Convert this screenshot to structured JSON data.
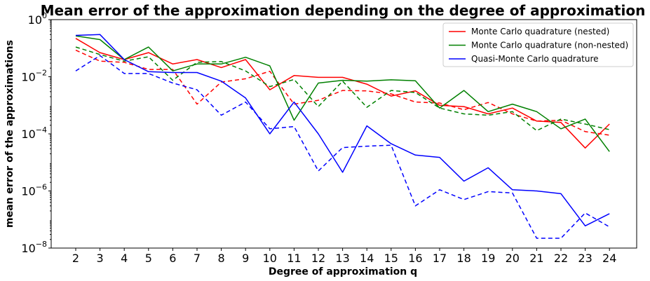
{
  "chart_data": {
    "type": "line",
    "title": "Mean error of the approximation depending on the degree of approximation",
    "xlabel": "Degree of approximation q",
    "ylabel": "mean error of the approximations",
    "yscale": "log",
    "ylim": [
      1e-08,
      1
    ],
    "y_ticks": [
      {
        "base": "10",
        "exp": "−8",
        "value": 1e-08
      },
      {
        "base": "10",
        "exp": "−6",
        "value": 1e-06
      },
      {
        "base": "10",
        "exp": "−4",
        "value": 0.0001
      },
      {
        "base": "10",
        "exp": "−2",
        "value": 0.01
      },
      {
        "base": "10",
        "exp": "0",
        "value": 1
      }
    ],
    "x": [
      2,
      3,
      4,
      5,
      6,
      7,
      8,
      9,
      10,
      11,
      12,
      13,
      14,
      15,
      16,
      17,
      18,
      19,
      20,
      21,
      22,
      23,
      24
    ],
    "x_tick_labels": [
      "2",
      "3",
      "4",
      "5",
      "6",
      "7",
      "8",
      "9",
      "10",
      "11",
      "12",
      "13",
      "14",
      "15",
      "16",
      "17",
      "18",
      "19",
      "20",
      "21",
      "22",
      "23",
      "24"
    ],
    "legend_position": "top-right",
    "grid": false,
    "series": [
      {
        "name": "Monte Carlo quadrature (nested)",
        "color": "#ff0000",
        "style": "solid",
        "values": [
          0.22,
          0.07,
          0.04,
          0.07,
          0.028,
          0.04,
          0.021,
          0.04,
          0.0035,
          0.011,
          0.0095,
          0.0095,
          0.0055,
          0.0021,
          0.0032,
          0.001,
          0.0009,
          0.0005,
          0.0008,
          0.00028,
          0.00025,
          3.2e-05,
          0.00022
        ]
      },
      {
        "name": "",
        "color": "#ff0000",
        "style": "dashed",
        "values": [
          0.085,
          0.035,
          0.032,
          0.018,
          0.018,
          0.0011,
          0.0065,
          0.0085,
          0.0155,
          0.0011,
          0.0015,
          0.0033,
          0.0032,
          0.0025,
          0.0013,
          0.0012,
          0.0007,
          0.00125,
          0.0005,
          0.00028,
          0.0003,
          0.00012,
          9e-05
        ]
      },
      {
        "name": "Monte Carlo quadrature (non-nested)",
        "color": "#008000",
        "style": "solid",
        "values": [
          0.27,
          0.2,
          0.04,
          0.11,
          0.016,
          0.028,
          0.028,
          0.048,
          0.024,
          0.0003,
          0.006,
          0.0075,
          0.007,
          0.0078,
          0.0072,
          0.0008,
          0.0033,
          0.0006,
          0.0011,
          0.0006,
          0.00015,
          0.00033,
          2.4e-05
        ]
      },
      {
        "name": "",
        "color": "#008000",
        "style": "dashed",
        "values": [
          0.11,
          0.06,
          0.035,
          0.05,
          0.0075,
          0.032,
          0.034,
          0.016,
          0.0045,
          0.008,
          0.0009,
          0.007,
          0.00085,
          0.0033,
          0.0028,
          0.0008,
          0.0005,
          0.00045,
          0.0006,
          0.00013,
          0.00033,
          0.00022,
          0.00014
        ]
      },
      {
        "name": "Quasi-Monte Carlo quadrature",
        "color": "#0000ff",
        "style": "solid",
        "values": [
          0.28,
          0.3,
          0.04,
          0.015,
          0.014,
          0.014,
          0.007,
          0.0018,
          0.0001,
          0.0013,
          0.0001,
          4.5e-06,
          0.00019,
          4.5e-05,
          1.8e-05,
          1.5e-05,
          2.2e-06,
          6.5e-06,
          1.1e-06,
          1e-06,
          8e-07,
          6e-08,
          1.6e-07
        ]
      },
      {
        "name": "",
        "color": "#0000ff",
        "style": "dashed",
        "values": [
          0.016,
          0.055,
          0.013,
          0.013,
          0.006,
          0.0035,
          0.00045,
          0.0013,
          0.00015,
          0.00018,
          5e-06,
          3.3e-05,
          3.7e-05,
          4e-05,
          3e-07,
          1.1e-06,
          5e-07,
          9.5e-07,
          8.5e-07,
          2.2e-08,
          2.2e-08,
          1.7e-07,
          5.5e-08
        ]
      }
    ]
  }
}
